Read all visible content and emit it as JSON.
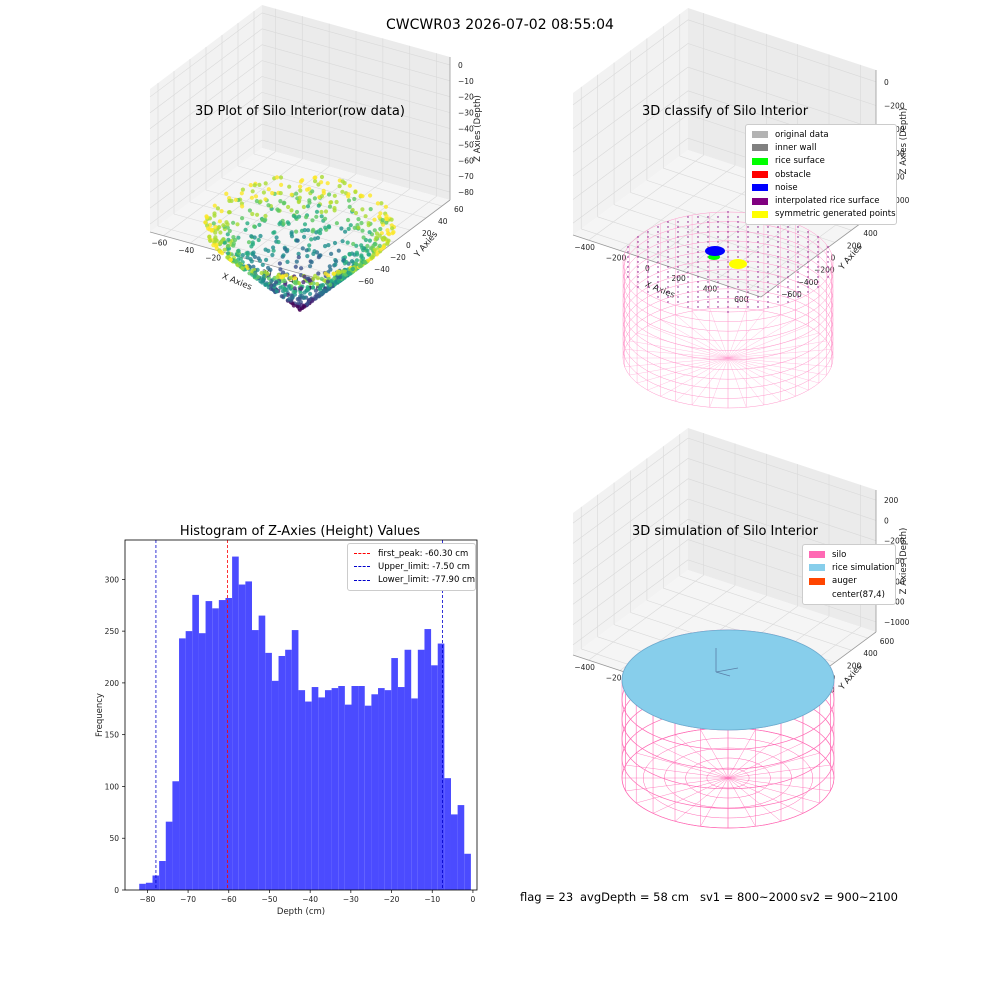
{
  "suptitle": "CWCWR03 2026-07-02 08:55:04",
  "footer": {
    "flag": "flag = 23",
    "avgDepth": "avgDepth = 58 cm",
    "sv1": "sv1 = 800~2000",
    "sv2": "sv2 = 900~2100"
  },
  "chart_data": [
    {
      "type": "scatter",
      "title": "3D Plot of Silo Interior(row data)",
      "xlabel": "X Axies",
      "ylabel": "Y Axies",
      "zlabel": "Z Axies (Depth)",
      "xticks": [
        "−60",
        "−40",
        "−20",
        "0",
        "20",
        "40",
        "60"
      ],
      "yticks": [
        "−60",
        "−40",
        "−20",
        "0",
        "20",
        "40",
        "60"
      ],
      "zticks": [
        "0",
        "−10",
        "−20",
        "−30",
        "−40",
        "−50",
        "−60",
        "−70",
        "−80"
      ],
      "xlim": [
        -65,
        65
      ],
      "ylim": [
        -65,
        65
      ],
      "zlim": [
        -88,
        2
      ],
      "colormap": "viridis",
      "grid": true
    },
    {
      "type": "scatter",
      "title": "3D classify of Silo Interior",
      "xlabel": "X Axies",
      "ylabel": "Y Axies",
      "zlabel": "Z Axies (Depth)",
      "xticks": [
        "−400",
        "−200",
        "0",
        "200",
        "400",
        "600"
      ],
      "yticks": [
        "−600",
        "−400",
        "−200",
        "0",
        "200",
        "400",
        "600"
      ],
      "zticks": [
        "0",
        "−200",
        "−400",
        "−600",
        "−800",
        "−1000"
      ],
      "legend": [
        {
          "label": "original data",
          "color": "#b3b3b3"
        },
        {
          "label": "inner wall",
          "color": "#808080"
        },
        {
          "label": "rice surface",
          "color": "#00ff00"
        },
        {
          "label": "obstacle",
          "color": "#ff0000"
        },
        {
          "label": "noise",
          "color": "#0000ff"
        },
        {
          "label": "interpolated rice surface",
          "color": "#800080"
        },
        {
          "label": "symmetric generated points",
          "color": "#ffff00"
        }
      ],
      "legend_position": "top-right",
      "grid": true
    },
    {
      "type": "bar",
      "title": "Histogram of Z-Axies (Height) Values",
      "xlabel": "Depth (cm)",
      "ylabel": "Frequency",
      "xticks": [
        -80,
        -70,
        -60,
        -50,
        -40,
        -30,
        -20,
        -10,
        0
      ],
      "yticks": [
        0,
        50,
        100,
        150,
        200,
        250,
        300
      ],
      "xlim": [
        -85.5,
        1
      ],
      "ylim": [
        0,
        338
      ],
      "bin_start": -82,
      "bin_width": 1.63,
      "values": [
        6,
        7,
        14,
        28,
        66,
        105,
        243,
        250,
        285,
        248,
        279,
        272,
        280,
        282,
        322,
        295,
        298,
        251,
        265,
        229,
        202,
        226,
        232,
        251,
        193,
        182,
        196,
        186,
        193,
        195,
        197,
        179,
        197,
        197,
        178,
        189,
        195,
        193,
        224,
        196,
        232,
        185,
        232,
        252,
        217,
        238,
        108,
        73,
        82,
        35
      ],
      "bar_color": "#4b4bff",
      "vlines": [
        {
          "label": "first_peak: -60.30 cm",
          "x": -60.3,
          "color": "#ff0000"
        },
        {
          "label": "Upper_limit: -7.50 cm",
          "x": -7.5,
          "color": "#0000cc"
        },
        {
          "label": "Lower_limit: -77.90 cm",
          "x": -77.9,
          "color": "#0000cc"
        }
      ],
      "legend_position": "top-right"
    },
    {
      "type": "scatter",
      "title": "3D simulation of Silo Interior",
      "xlabel": "X Axies",
      "ylabel": "Y Axies",
      "zlabel": "Z Axies (Depth)",
      "xticks": [
        "−400",
        "−200",
        "0",
        "200",
        "400",
        "600"
      ],
      "yticks": [
        "−600",
        "−400",
        "−200",
        "0",
        "200",
        "400",
        "600"
      ],
      "zticks": [
        "200",
        "0",
        "−200",
        "−400",
        "−600",
        "−800",
        "−1000"
      ],
      "legend": [
        {
          "label": "silo",
          "color": "#ff69b4"
        },
        {
          "label": "rice simulation",
          "color": "#87ceeb"
        },
        {
          "label": "auger",
          "color": "#ff4500"
        },
        {
          "label": "center(87,4)",
          "color": ""
        }
      ],
      "legend_position": "top-right",
      "grid": true
    }
  ]
}
